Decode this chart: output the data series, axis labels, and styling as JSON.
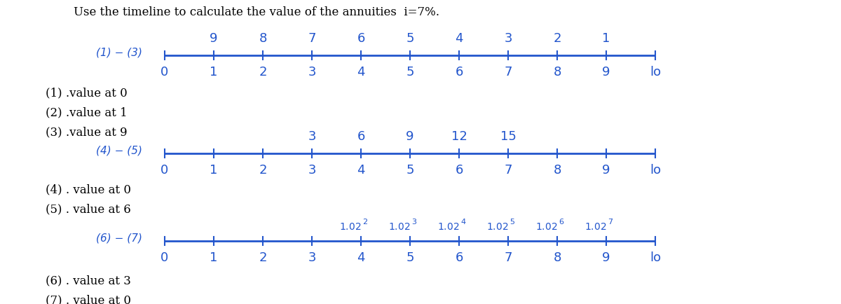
{
  "title": "Use the timeline to calculate the value of the annuities  i=7%.",
  "title_fontsize": 12,
  "bg_color": "#ffffff",
  "text_color": "#000000",
  "handwritten_color": "#2255cc",
  "timeline_color": "#2255cc",
  "timeline1_label": "(1) − (3)",
  "timeline1_above_numbers": [
    "9",
    "8",
    "7",
    "6",
    "5",
    "4",
    "3",
    "2",
    "1"
  ],
  "timeline1_above_positions": [
    1,
    2,
    3,
    4,
    5,
    6,
    7,
    8,
    9
  ],
  "timeline1_below_numbers": [
    "0",
    "1",
    "2",
    "3",
    "4",
    "5",
    "6",
    "7",
    "8",
    "9",
    "lo"
  ],
  "timeline1_ticks": [
    0,
    1,
    2,
    3,
    4,
    5,
    6,
    7,
    8,
    9,
    10
  ],
  "timeline1_texts": [
    "(1) .value at 0",
    "(2) .value at 1",
    "(3) .value at 9"
  ],
  "timeline2_label": "(4) − (5)",
  "timeline2_above_numbers": [
    "3",
    "6",
    "9",
    "12",
    "15"
  ],
  "timeline2_above_positions": [
    3,
    4,
    5,
    6,
    7
  ],
  "timeline2_below_numbers": [
    "0",
    "1",
    "2",
    "3",
    "4",
    "5",
    "6",
    "7",
    "8",
    "9",
    "lo"
  ],
  "timeline2_ticks": [
    0,
    1,
    2,
    3,
    4,
    5,
    6,
    7,
    8,
    9,
    10
  ],
  "timeline2_texts": [
    "(4) . value at 0",
    "(5) . value at 6"
  ],
  "timeline3_label": "(6) − (7)",
  "timeline3_above_positions": [
    4,
    5,
    6,
    7,
    8,
    9
  ],
  "timeline3_above_exponents": [
    2,
    3,
    4,
    5,
    6,
    7
  ],
  "timeline3_below_numbers": [
    "0",
    "1",
    "2",
    "3",
    "4",
    "5",
    "6",
    "7",
    "8",
    "9",
    "lo"
  ],
  "timeline3_ticks": [
    0,
    1,
    2,
    3,
    4,
    5,
    6,
    7,
    8,
    9,
    10
  ],
  "timeline3_texts": [
    "(6) . value at 3",
    "(7) . value at 0"
  ]
}
